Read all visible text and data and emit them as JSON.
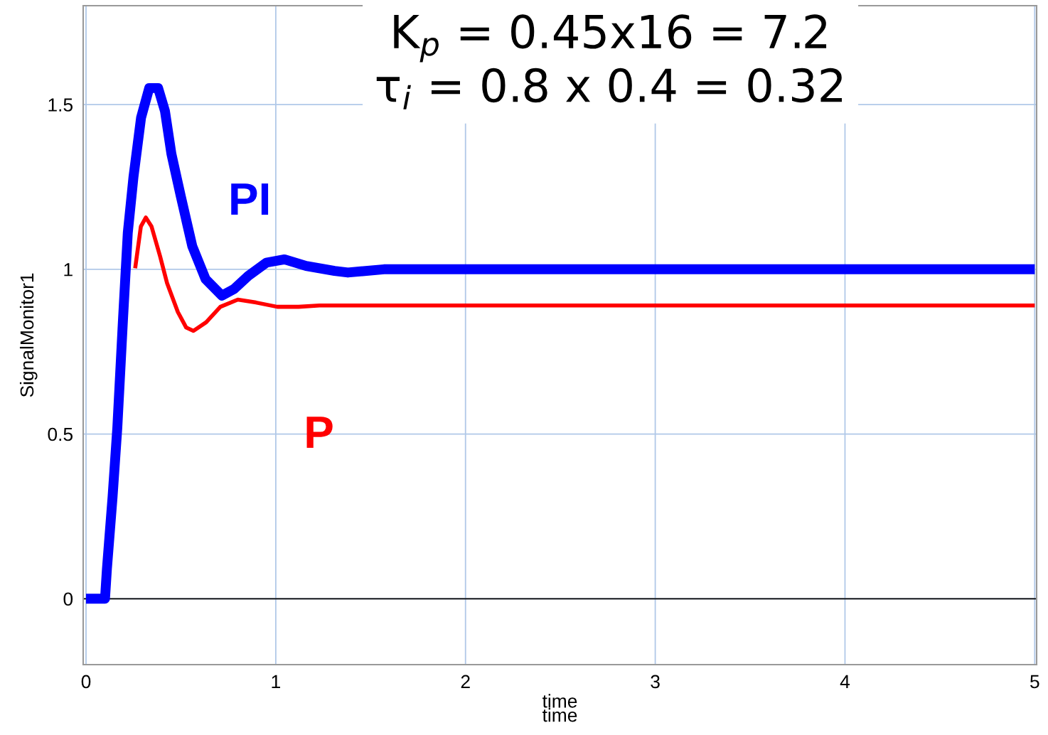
{
  "chart_data": {
    "type": "line",
    "xlabel": "time\ntime",
    "ylabel": "SignalMonitor1",
    "annotations": [
      "K$_{p}$ = 0.45x16 = 7.2",
      "τ$_{i}$ = 0.8 x 0.4 = 0.32"
    ],
    "xlim": [
      -0.015,
      5.01
    ],
    "ylim": [
      -0.2,
      1.8
    ],
    "xticks": [
      0,
      1,
      2,
      3,
      4,
      5
    ],
    "yticks": [
      0,
      0.5,
      1,
      1.5
    ],
    "grid": true,
    "ref_lines": [
      {
        "axis": "y",
        "value": 0,
        "color": "#000000"
      }
    ],
    "series": [
      {
        "name": "PI",
        "color": "#0000ff",
        "x": [
          0,
          0.1,
          0.11,
          0.14,
          0.165,
          0.195,
          0.22,
          0.25,
          0.29,
          0.333,
          0.38,
          0.416,
          0.45,
          0.5,
          0.56,
          0.63,
          0.716,
          0.78,
          0.855,
          0.95,
          1.046,
          1.16,
          1.31,
          1.38,
          1.57,
          5.0
        ],
        "values": [
          0,
          0,
          0.09,
          0.31,
          0.52,
          0.85,
          1.11,
          1.28,
          1.46,
          1.55,
          1.55,
          1.48,
          1.35,
          1.22,
          1.07,
          0.97,
          0.92,
          0.94,
          0.98,
          1.02,
          1.03,
          1.01,
          0.995,
          0.99,
          1.0,
          1.0
        ]
      },
      {
        "name": "P",
        "color": "#ff0000",
        "x": [
          0.259,
          0.289,
          0.315,
          0.345,
          0.39,
          0.427,
          0.484,
          0.528,
          0.566,
          0.633,
          0.708,
          0.8,
          0.896,
          1.008,
          1.12,
          1.23,
          5.0
        ],
        "values": [
          1.003,
          1.13,
          1.157,
          1.13,
          1.04,
          0.958,
          0.87,
          0.823,
          0.813,
          0.839,
          0.886,
          0.908,
          0.899,
          0.886,
          0.886,
          0.89,
          0.89
        ]
      }
    ]
  }
}
